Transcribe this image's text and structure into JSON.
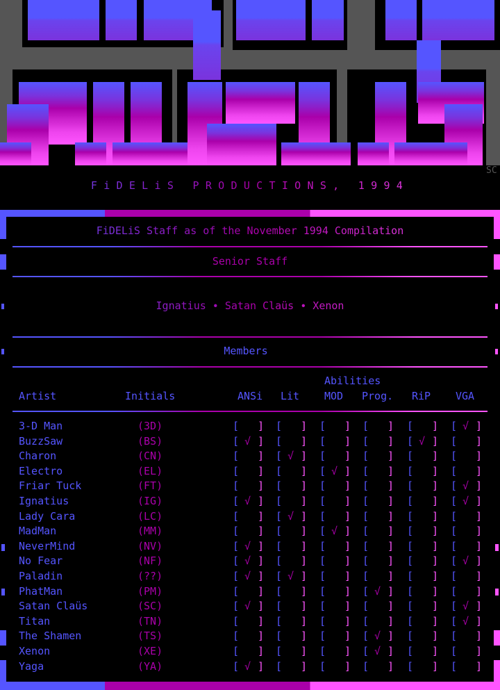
{
  "colors": {
    "blue": "#5555ff",
    "magenta": "#aa00aa",
    "pink": "#ff55ff",
    "gray": "#555555",
    "background": "#000000"
  },
  "logo": {
    "text": "FDS",
    "signature": "SC"
  },
  "banner": "FiDELiS PRODUCTIONS, 1994",
  "title": "FiDELiS Staff as of the November 1994 Compilation",
  "senior": {
    "heading": "Senior Staff",
    "names": "Ignatius ∙ Satan Claüs ∙ Xenon"
  },
  "members": {
    "heading": "Members",
    "abilities_label": "Abilities",
    "columns": {
      "artist": "Artist",
      "initials": "Initials",
      "abilities": [
        "ANSi",
        "Lit",
        "MOD",
        "Prog.",
        "RiP",
        "VGA"
      ]
    },
    "check_glyph": "√",
    "rows": [
      {
        "artist": "3-D Man",
        "initials": "(3D)",
        "checks": [
          0,
          0,
          0,
          0,
          0,
          1
        ]
      },
      {
        "artist": "BuzzSaw",
        "initials": "(BS)",
        "checks": [
          1,
          0,
          0,
          0,
          1,
          0
        ]
      },
      {
        "artist": "Charon",
        "initials": "(CN)",
        "checks": [
          0,
          1,
          0,
          0,
          0,
          0
        ]
      },
      {
        "artist": "Electro",
        "initials": "(EL)",
        "checks": [
          0,
          0,
          1,
          0,
          0,
          0
        ]
      },
      {
        "artist": "Friar Tuck",
        "initials": "(FT)",
        "checks": [
          0,
          0,
          0,
          0,
          0,
          1
        ]
      },
      {
        "artist": "Ignatius",
        "initials": "(IG)",
        "checks": [
          1,
          0,
          0,
          0,
          0,
          1
        ]
      },
      {
        "artist": "Lady Cara",
        "initials": "(LC)",
        "checks": [
          0,
          1,
          0,
          0,
          0,
          0
        ]
      },
      {
        "artist": "MadMan",
        "initials": "(MM)",
        "checks": [
          0,
          0,
          1,
          0,
          0,
          0
        ]
      },
      {
        "artist": "NeverMind",
        "initials": "(NV)",
        "checks": [
          1,
          0,
          0,
          0,
          0,
          0
        ]
      },
      {
        "artist": "No Fear",
        "initials": "(NF)",
        "checks": [
          1,
          0,
          0,
          0,
          0,
          1
        ]
      },
      {
        "artist": "Paladin",
        "initials": "(??)",
        "checks": [
          1,
          1,
          0,
          0,
          0,
          0
        ]
      },
      {
        "artist": "PhatMan",
        "initials": "(PM)",
        "checks": [
          0,
          0,
          0,
          1,
          0,
          0
        ]
      },
      {
        "artist": "Satan Claüs",
        "initials": "(SC)",
        "checks": [
          1,
          0,
          0,
          0,
          0,
          1
        ]
      },
      {
        "artist": "Titan",
        "initials": "(TN)",
        "checks": [
          0,
          0,
          0,
          0,
          0,
          1
        ]
      },
      {
        "artist": "The Shamen",
        "initials": "(TS)",
        "checks": [
          0,
          0,
          0,
          1,
          0,
          0
        ]
      },
      {
        "artist": "Xenon",
        "initials": "(XE)",
        "checks": [
          0,
          0,
          0,
          1,
          0,
          0
        ]
      },
      {
        "artist": "Yaga",
        "initials": "(YA)",
        "checks": [
          1,
          0,
          0,
          0,
          0,
          0
        ]
      }
    ]
  }
}
